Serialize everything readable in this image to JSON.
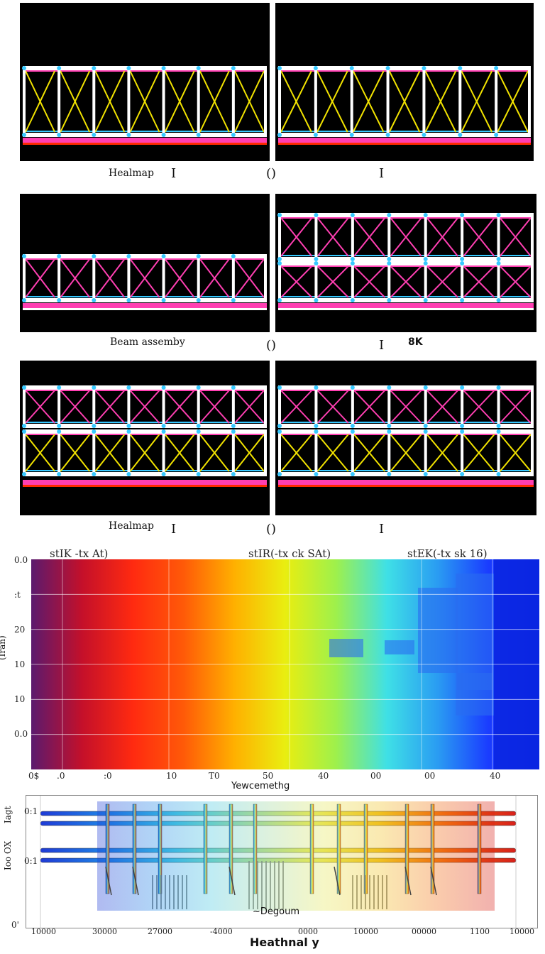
{
  "rows": [
    {
      "label": "Healmap",
      "glyph_a": "I",
      "paren": "()",
      "glyph_b": "I",
      "extra": ""
    },
    {
      "label": "Beam assemby",
      "glyph_a": "",
      "paren": "()",
      "glyph_b": "I",
      "extra": "8K"
    },
    {
      "label": "Healmap",
      "glyph_a": "I",
      "paren": "()",
      "glyph_b": "I",
      "extra": ""
    }
  ],
  "colors": {
    "pink": "#ff3fb2",
    "cyan": "#36c8ff",
    "yellow": "#f2e300",
    "white": "#ffffff",
    "red": "#ff2a00",
    "blue": "#1a3cff"
  },
  "chart_data": [
    {
      "type": "heatmap",
      "titles": [
        "stIK -tx At)",
        "stIR(-tx ck SAt)",
        "stEK(-tx sk 16)"
      ],
      "ylabel": "(Iran)",
      "xlabel": "Yewcemethg",
      "y_ticks": [
        "0.0",
        ":t",
        "20",
        "10",
        "10",
        "0.0"
      ],
      "x_ticks": [
        "0$",
        ".0",
        ":0",
        "10",
        "T0",
        "50",
        "40",
        "00",
        "00",
        "40"
      ],
      "gradient": [
        "#5b1a6e",
        "#c4102a",
        "#ff2a10",
        "#ff5a08",
        "#ffb000",
        "#e9ee10",
        "#9ef04c",
        "#3fe0e6",
        "#2a9cf2",
        "#1a3cff",
        "#0a28e8"
      ]
    },
    {
      "type": "heatmap",
      "title": "Heathnal y",
      "annotation": "~Degoum",
      "ylabel_top": "Iagt",
      "ylabel_mid": "Ioo OX",
      "y_ticks": [
        "0:1",
        "0:1",
        "0'"
      ],
      "x_ticks": [
        "10000",
        "30000",
        "27000",
        "-4000",
        "0000",
        "10000",
        "00000",
        "1100",
        "10000"
      ],
      "gradient": [
        "#1f3bd6",
        "#1f86e6",
        "#48c8e0",
        "#9fd8a0",
        "#e6e85a",
        "#f0c020",
        "#f06a10",
        "#d8201a"
      ]
    }
  ]
}
